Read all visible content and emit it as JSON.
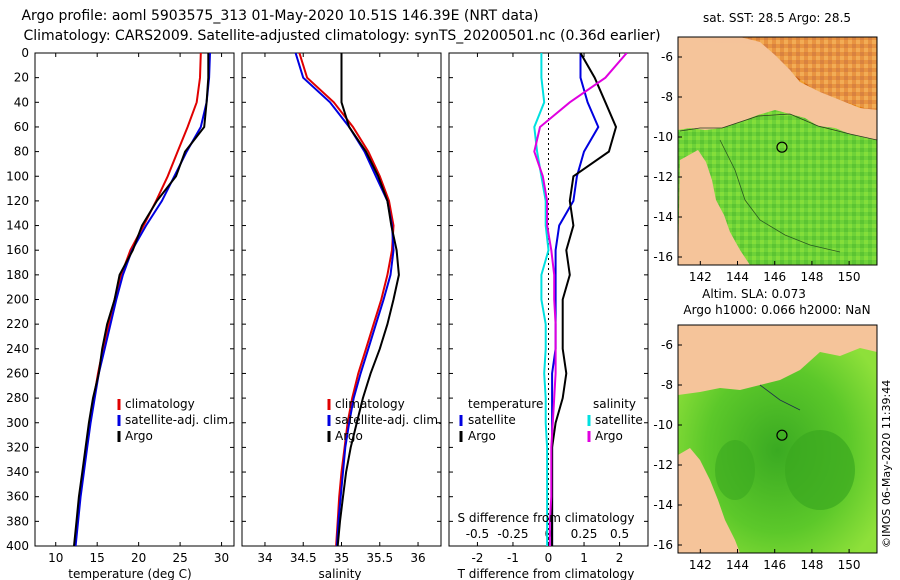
{
  "title": {
    "line1": "Argo profile: aoml 5903575_313 01-May-2020 10.51S 146.39E (NRT data)",
    "line2": "Climatology: CARS2009. Satellite-adjusted climatology: synTS_20200501.nc (0.36d earlier)"
  },
  "colors": {
    "clim": "#e00000",
    "sat": "#0000e0",
    "argo": "#000000",
    "sat_s": "#00e0e0",
    "argo_s": "#e000e0",
    "land": "#f5c49a",
    "sea_hi": "#7cdc30"
  },
  "chart_data": [
    {
      "type": "line",
      "name": "temperature",
      "xlabel": "temperature (deg C)",
      "ylabel": "",
      "xlim": [
        7.5,
        31.5
      ],
      "ylim": [
        0,
        400
      ],
      "xticks": [
        10,
        15,
        20,
        25,
        30
      ],
      "yticks": [
        0,
        20,
        40,
        60,
        80,
        100,
        120,
        140,
        160,
        180,
        200,
        220,
        240,
        260,
        280,
        300,
        320,
        340,
        360,
        380,
        400
      ],
      "legend": [
        "climatology",
        "satellite-adj. clim.",
        "Argo"
      ],
      "depth": [
        0,
        20,
        40,
        60,
        80,
        100,
        120,
        140,
        160,
        180,
        200,
        220,
        240,
        260,
        280,
        300,
        320,
        340,
        360,
        380,
        400
      ],
      "series": [
        {
          "name": "climatology",
          "values": [
            27.5,
            27.4,
            27.0,
            25.9,
            24.7,
            23.5,
            22.1,
            20.6,
            19.0,
            17.9,
            17.1,
            16.4,
            15.7,
            15.1,
            14.6,
            14.1,
            13.7,
            13.3,
            12.9,
            12.6,
            12.3
          ]
        },
        {
          "name": "satellite-adj. clim.",
          "values": [
            28.6,
            28.5,
            28.2,
            27.5,
            25.8,
            24.3,
            22.8,
            20.9,
            19.2,
            18.1,
            17.3,
            16.6,
            15.9,
            15.2,
            14.7,
            14.2,
            13.8,
            13.4,
            13.0,
            12.7,
            12.4
          ]
        },
        {
          "name": "Argo",
          "values": [
            28.4,
            28.4,
            28.2,
            27.9,
            25.6,
            24.5,
            22.2,
            20.4,
            19.3,
            17.7,
            17.1,
            16.2,
            15.6,
            15.2,
            14.5,
            14.0,
            13.6,
            13.2,
            12.8,
            12.5,
            12.2
          ]
        }
      ]
    },
    {
      "type": "line",
      "name": "salinity",
      "xlabel": "salinity",
      "xlim": [
        33.7,
        36.3
      ],
      "ylim": [
        0,
        400
      ],
      "xticks": [
        34,
        34.5,
        35,
        35.5,
        36
      ],
      "legend": [
        "climatology",
        "satellite-adj. clim.",
        "Argo"
      ],
      "depth": [
        0,
        20,
        40,
        60,
        80,
        100,
        120,
        140,
        160,
        180,
        200,
        220,
        240,
        260,
        280,
        300,
        320,
        340,
        360,
        380,
        400
      ],
      "series": [
        {
          "name": "climatology",
          "values": [
            34.45,
            34.55,
            34.9,
            35.15,
            35.35,
            35.5,
            35.62,
            35.68,
            35.66,
            35.6,
            35.52,
            35.42,
            35.32,
            35.22,
            35.14,
            35.08,
            35.04,
            35.0,
            34.97,
            34.95,
            34.93
          ]
        },
        {
          "name": "satellite-adj. clim.",
          "values": [
            34.4,
            34.5,
            34.85,
            35.1,
            35.3,
            35.45,
            35.6,
            35.66,
            35.68,
            35.64,
            35.55,
            35.45,
            35.35,
            35.25,
            35.16,
            35.1,
            35.05,
            35.02,
            34.99,
            34.96,
            34.94
          ]
        },
        {
          "name": "Argo",
          "values": [
            35.0,
            35.0,
            35.0,
            35.1,
            35.32,
            35.48,
            35.6,
            35.65,
            35.72,
            35.75,
            35.68,
            35.6,
            35.5,
            35.38,
            35.28,
            35.2,
            35.12,
            35.06,
            35.02,
            34.98,
            34.95
          ]
        }
      ]
    },
    {
      "type": "line",
      "name": "difference",
      "xlabel": "T difference from climatology",
      "top_xlabel": "S difference from climatology",
      "xlim": [
        -2.8,
        2.8
      ],
      "ylim": [
        0,
        400
      ],
      "xticks": [
        -2,
        -1,
        0,
        1,
        2
      ],
      "top_xticks": [
        -0.5,
        -0.25,
        0,
        0.25,
        0.5
      ],
      "s_scale": 0.25,
      "legend_temperature_title": "temperature",
      "legend_salinity_title": "salinity",
      "legend": [
        "satellite",
        "Argo",
        "satellite",
        "Argo"
      ],
      "depth": [
        0,
        20,
        40,
        60,
        80,
        100,
        120,
        140,
        160,
        180,
        200,
        220,
        240,
        260,
        280,
        300,
        320,
        340,
        360,
        380,
        400
      ],
      "series": [
        {
          "name": "temperature satellite",
          "values": [
            0.9,
            0.9,
            1.1,
            1.4,
            1.0,
            0.8,
            0.7,
            0.3,
            0.2,
            0.2,
            0.2,
            0.2,
            0.2,
            0.1,
            0.1,
            0.1,
            0.1,
            0.1,
            0.1,
            0.1,
            0.1
          ]
        },
        {
          "name": "temperature Argo",
          "values": [
            0.9,
            1.3,
            1.6,
            1.9,
            1.7,
            0.7,
            0.6,
            0.7,
            0.5,
            0.6,
            0.4,
            0.4,
            0.4,
            0.5,
            0.4,
            0.2,
            0.1,
            0.1,
            0.1,
            0.1,
            0.1
          ]
        },
        {
          "name": "salinity satellite",
          "values": [
            -0.05,
            -0.05,
            -0.03,
            -0.1,
            -0.08,
            -0.05,
            -0.02,
            -0.02,
            0.0,
            -0.05,
            -0.05,
            -0.02,
            -0.02,
            -0.03,
            -0.02,
            -0.02,
            -0.01,
            -0.01,
            -0.01,
            -0.01,
            -0.01
          ]
        },
        {
          "name": "salinity Argo",
          "values": [
            0.55,
            0.4,
            0.15,
            -0.06,
            -0.1,
            -0.04,
            -0.01,
            -0.01,
            0.02,
            0.04,
            0.04,
            0.05,
            0.05,
            0.05,
            0.04,
            0.03,
            0.02,
            0.02,
            0.02,
            0.01,
            0.01
          ]
        }
      ]
    }
  ],
  "maps": {
    "sst": {
      "title": "sat. SST: 28.5 Argo: 28.5",
      "lon_ticks": [
        "142",
        "144",
        "146",
        "148",
        "150"
      ],
      "lat_ticks": [
        "-6",
        "-8",
        "-10",
        "-12",
        "-14",
        "-16"
      ],
      "profile_lon": 146.39,
      "profile_lat": -10.51
    },
    "sla": {
      "title1": "Altim. SLA: 0.073",
      "title2": "Argo h1000: 0.066 h2000: NaN",
      "lon_ticks": [
        "142",
        "144",
        "146",
        "148",
        "150"
      ],
      "lat_ticks": [
        "-6",
        "-8",
        "-10",
        "-12",
        "-14",
        "-16"
      ],
      "profile_lon": 146.39,
      "profile_lat": -10.51
    }
  },
  "footer": "©IMOS 06-May-2020 11:39:44"
}
